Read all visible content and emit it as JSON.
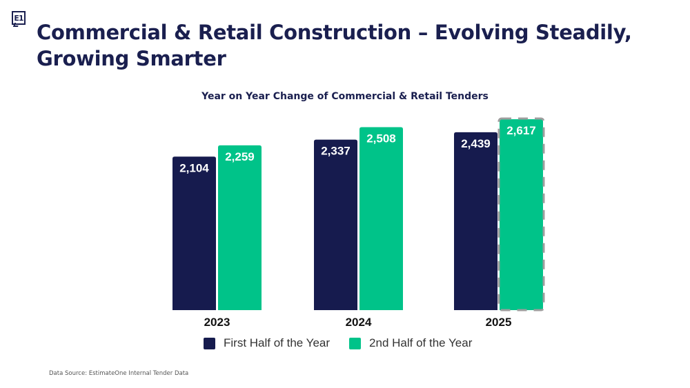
{
  "logo": {
    "text": "E1",
    "icon": "estimateone-logo-icon"
  },
  "page_title": "Commercial & Retail Construction – Evolving Steadily, Growing Smarter",
  "footnote": "Data Source: EstimateOne Internal Tender Data",
  "colors": {
    "first_half": "#161b4e",
    "second_half": "#00c389",
    "projected_border": "#9e9e9e",
    "title": "#1a1f4f"
  },
  "chart_data": {
    "type": "bar",
    "title": "Year on Year Change of Commercial & Retail Tenders",
    "xlabel": "",
    "ylabel": "",
    "categories": [
      "2023",
      "2024",
      "2025"
    ],
    "series": [
      {
        "name": "First Half of the Year",
        "values": [
          2104,
          2337,
          2439
        ],
        "labels": [
          "2,104",
          "2,337",
          "2,439"
        ]
      },
      {
        "name": "2nd Half of the Year",
        "values": [
          2259,
          2508,
          2617
        ],
        "labels": [
          "2,259",
          "2,508",
          "2,617"
        ],
        "projected": [
          false,
          false,
          true
        ]
      }
    ],
    "ylim": [
      0,
      2617
    ],
    "grid": false,
    "legend": "bottom-center",
    "data_labels": "inside-top"
  }
}
